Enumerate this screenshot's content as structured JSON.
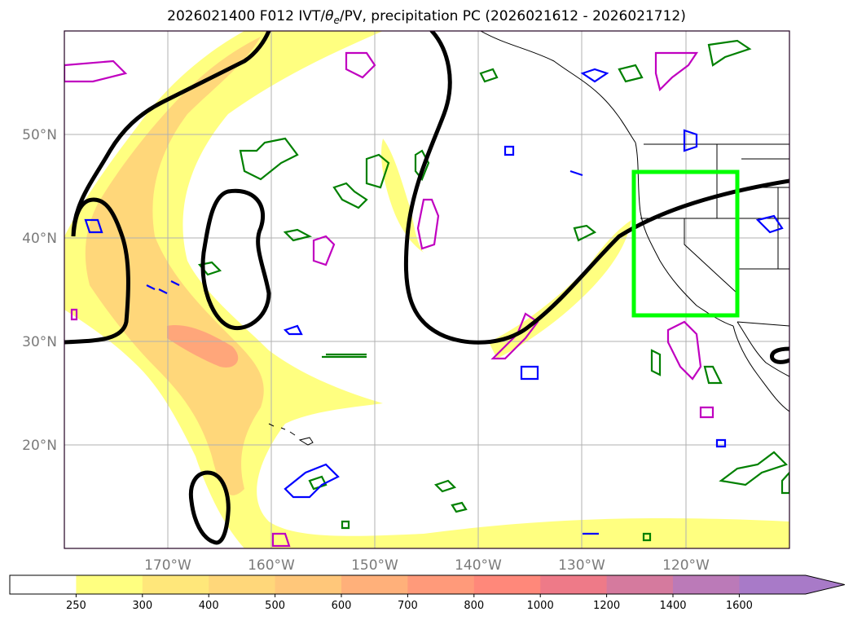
{
  "title": {
    "prefix": "2026021400 F012 IVT/",
    "theta_symbol": "θ",
    "theta_subscript": "e",
    "suffix": "/PV, precipitation PC (2026021612 - 2026021712)"
  },
  "map": {
    "lon_range": [
      -180,
      -110
    ],
    "lat_range": [
      10,
      60
    ],
    "lon_tick_labels": [
      "170°W",
      "160°W",
      "150°W",
      "140°W",
      "130°W",
      "120°W"
    ],
    "lat_tick_labels": [
      "50°N",
      "40°N",
      "30°N",
      "20°N"
    ],
    "gridlines": true,
    "target_box": {
      "lon": [
        -125,
        -115
      ],
      "lat": [
        32.5,
        46.5
      ],
      "color": "#00ff00"
    }
  },
  "colorbar": {
    "levels": [
      "250",
      "300",
      "400",
      "500",
      "600",
      "700",
      "800",
      "1000",
      "1200",
      "1400",
      "1600"
    ],
    "colors": [
      "#ffff80",
      "#ffe77a",
      "#ffd77a",
      "#ffc77a",
      "#ffb07a",
      "#ff9a7a",
      "#ff887a",
      "#ee7a88",
      "#d57a9e",
      "#bb7ab8",
      "#a87ac8"
    ],
    "extend": "max"
  },
  "colors": {
    "pv_contour": "#000000",
    "precip_green": "#008000",
    "precip_blue": "#0000ff",
    "precip_magenta": "#c000c0",
    "coastline": "#000000"
  }
}
